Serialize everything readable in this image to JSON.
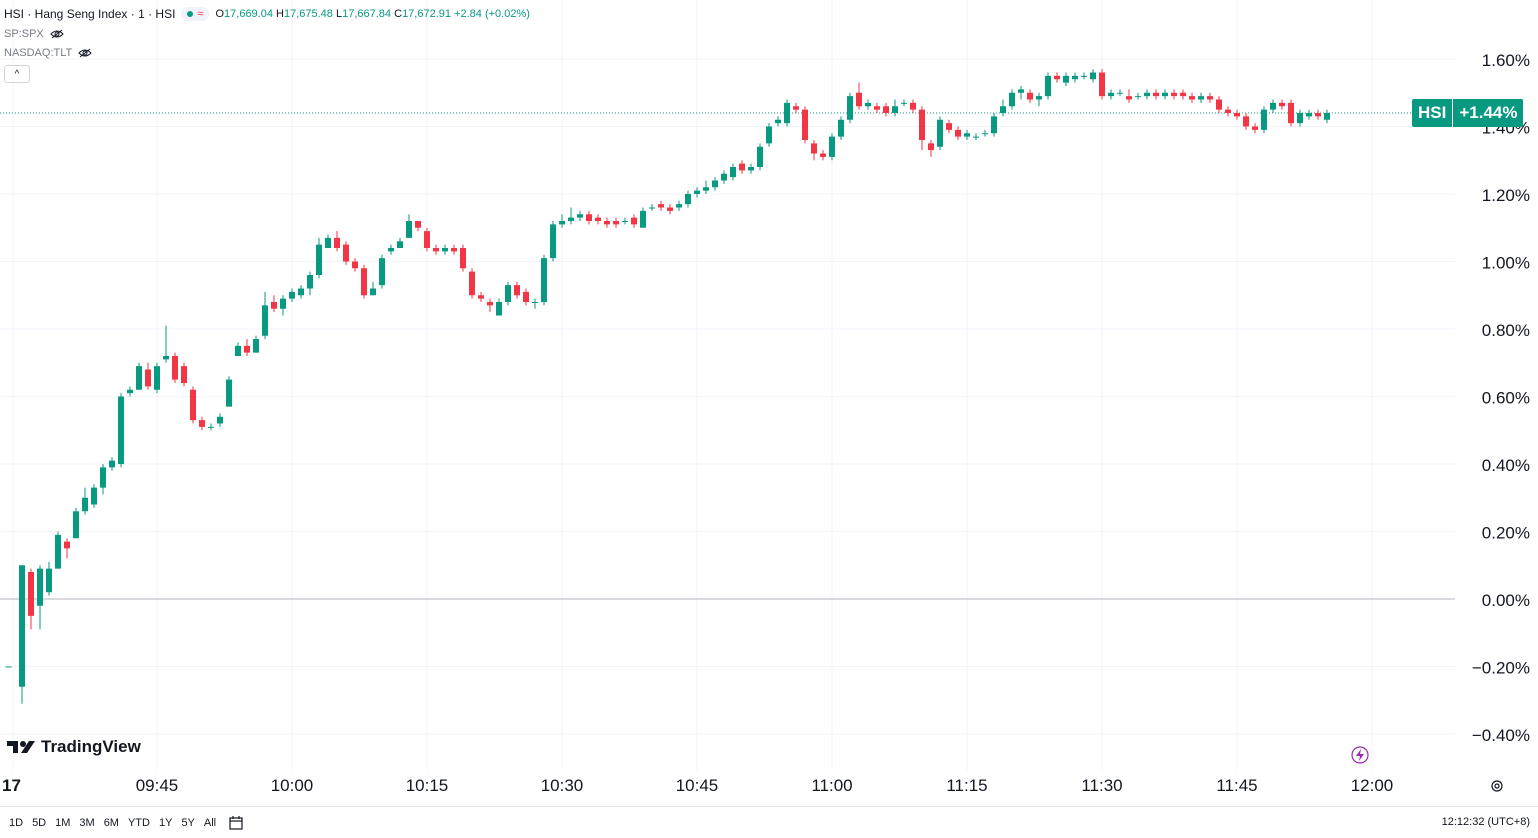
{
  "legend": {
    "title": "HSI · Hang Seng Index · 1 · HSI",
    "open_label": "O",
    "open_value": "17,669.04",
    "high_label": "H",
    "high_value": "17,675.48",
    "low_label": "L",
    "low_value": "17,667.84",
    "close_label": "C",
    "close_value": "17,672.91",
    "change": "+2.84 (+0.02%)",
    "approx_symbol": "≈",
    "compare_1": "SP:SPX",
    "compare_2": "NASDAQ:TLT",
    "collapse_glyph": "^"
  },
  "brand": {
    "name": "TradingView"
  },
  "badge": {
    "symbol": "HSI",
    "value": "+1.44%"
  },
  "bottom_bar": {
    "ranges": [
      "1D",
      "5D",
      "1M",
      "3M",
      "6M",
      "YTD",
      "1Y",
      "5Y",
      "All"
    ],
    "clock": "12:12:32 (UTC+8)"
  },
  "colors": {
    "up": "#089981",
    "down": "#f23645",
    "grid": "#f0f3fa",
    "zero_line": "#b2b5be",
    "current_line": "#089981",
    "text": "#131722"
  },
  "icons": {
    "visibility": "eye-icon",
    "calendar": "calendar-icon",
    "settings": "settings-icon",
    "alert": "lightning-icon"
  },
  "chart_data": {
    "type": "candlestick",
    "xlabel": "",
    "ylabel": "",
    "y_axis_unit": "%",
    "ylim": [
      -0.44,
      1.68
    ],
    "y_ticks": [
      1.6,
      1.4,
      1.2,
      1.0,
      0.8,
      0.6,
      0.4,
      0.2,
      0.0,
      -0.2,
      -0.4
    ],
    "y_tick_labels": [
      "1.60%",
      "1.40%",
      "1.20%",
      "1.00%",
      "0.80%",
      "0.60%",
      "0.40%",
      "0.20%",
      "0.00%",
      "−0.20%",
      "−0.40%"
    ],
    "x_ticks": [
      {
        "label": "17",
        "minute": 0
      },
      {
        "label": "09:45",
        "minute": 16
      },
      {
        "label": "10:00",
        "minute": 31
      },
      {
        "label": "10:15",
        "minute": 46
      },
      {
        "label": "10:30",
        "minute": 61
      },
      {
        "label": "10:45",
        "minute": 76
      },
      {
        "label": "11:00",
        "minute": 91
      },
      {
        "label": "11:15",
        "minute": 106
      },
      {
        "label": "11:30",
        "minute": 121
      },
      {
        "label": "11:45",
        "minute": 136
      },
      {
        "label": "12:00",
        "minute": 151
      }
    ],
    "x_minutes": [
      -0.5,
      1,
      2,
      3,
      4,
      5,
      6,
      7,
      8,
      9,
      10,
      11,
      12,
      13,
      14,
      15,
      16,
      17,
      18,
      19,
      20,
      21,
      22,
      23,
      24,
      25,
      26,
      27,
      28,
      29,
      30,
      31,
      32,
      33,
      34,
      35,
      36,
      37,
      38,
      39,
      40,
      41,
      42,
      43,
      44,
      45,
      46,
      47,
      48,
      49,
      50,
      51,
      52,
      53,
      54,
      55,
      56,
      57,
      58,
      59,
      60,
      61,
      62,
      63,
      64,
      65,
      66,
      67,
      68,
      69,
      70,
      71,
      72,
      73,
      74,
      75,
      76,
      77,
      78,
      79,
      80,
      81,
      82,
      83,
      84,
      85,
      86,
      87,
      88,
      89,
      90,
      91,
      92,
      93,
      94,
      95,
      96,
      97,
      98,
      99,
      100,
      101,
      102,
      103,
      104,
      105,
      106,
      107,
      108,
      109,
      110,
      111,
      112,
      113,
      114,
      115,
      116,
      117,
      118,
      119,
      120,
      121,
      122,
      123,
      124,
      125,
      126,
      127,
      128,
      129,
      130,
      131,
      132,
      133,
      134,
      135,
      136,
      137,
      138,
      139,
      140,
      141,
      142,
      143,
      144,
      145,
      146,
      147,
      148,
      149,
      150
    ],
    "candles": [
      [
        -0.2,
        -0.2,
        -0.2,
        -0.2
      ],
      [
        -0.26,
        0.1,
        -0.31,
        0.08
      ],
      [
        0.08,
        -0.05,
        -0.09,
        0.09
      ],
      [
        -0.02,
        0.09,
        -0.09,
        0.1
      ],
      [
        0.02,
        0.09,
        0.01,
        0.11
      ],
      [
        0.09,
        0.19,
        0.09,
        0.2
      ],
      [
        0.17,
        0.15,
        0.12,
        0.18
      ],
      [
        0.18,
        0.26,
        0.18,
        0.27
      ],
      [
        0.26,
        0.3,
        0.25,
        0.33
      ],
      [
        0.28,
        0.33,
        0.27,
        0.34
      ],
      [
        0.33,
        0.39,
        0.31,
        0.4
      ],
      [
        0.39,
        0.41,
        0.38,
        0.42
      ],
      [
        0.4,
        0.6,
        0.39,
        0.61
      ],
      [
        0.61,
        0.62,
        0.6,
        0.63
      ],
      [
        0.62,
        0.69,
        0.62,
        0.7
      ],
      [
        0.68,
        0.63,
        0.62,
        0.7
      ],
      [
        0.62,
        0.69,
        0.61,
        0.7
      ],
      [
        0.71,
        0.72,
        0.7,
        0.81
      ],
      [
        0.72,
        0.65,
        0.64,
        0.73
      ],
      [
        0.69,
        0.64,
        0.63,
        0.7
      ],
      [
        0.62,
        0.53,
        0.52,
        0.63
      ],
      [
        0.53,
        0.51,
        0.5,
        0.54
      ],
      [
        0.51,
        0.51,
        0.5,
        0.52
      ],
      [
        0.52,
        0.54,
        0.51,
        0.55
      ],
      [
        0.57,
        0.65,
        0.57,
        0.66
      ],
      [
        0.72,
        0.75,
        0.72,
        0.76
      ],
      [
        0.75,
        0.73,
        0.72,
        0.77
      ],
      [
        0.73,
        0.77,
        0.73,
        0.78
      ],
      [
        0.78,
        0.87,
        0.77,
        0.91
      ],
      [
        0.88,
        0.86,
        0.85,
        0.9
      ],
      [
        0.86,
        0.89,
        0.84,
        0.9
      ],
      [
        0.89,
        0.91,
        0.88,
        0.92
      ],
      [
        0.9,
        0.92,
        0.89,
        0.93
      ],
      [
        0.92,
        0.96,
        0.9,
        0.97
      ],
      [
        0.96,
        1.05,
        0.95,
        1.07
      ],
      [
        1.04,
        1.07,
        1.04,
        1.08
      ],
      [
        1.07,
        1.04,
        1.03,
        1.09
      ],
      [
        1.05,
        1.0,
        0.99,
        1.06
      ],
      [
        1.0,
        0.98,
        0.97,
        1.01
      ],
      [
        0.98,
        0.9,
        0.89,
        0.99
      ],
      [
        0.9,
        0.92,
        0.9,
        0.94
      ],
      [
        0.93,
        1.01,
        0.92,
        1.02
      ],
      [
        1.03,
        1.04,
        1.02,
        1.05
      ],
      [
        1.04,
        1.06,
        1.04,
        1.07
      ],
      [
        1.07,
        1.12,
        1.07,
        1.14
      ],
      [
        1.12,
        1.1,
        1.09,
        1.12
      ],
      [
        1.09,
        1.04,
        1.03,
        1.1
      ],
      [
        1.04,
        1.03,
        1.02,
        1.05
      ],
      [
        1.03,
        1.04,
        1.02,
        1.05
      ],
      [
        1.04,
        1.03,
        1.02,
        1.05
      ],
      [
        1.04,
        0.98,
        0.97,
        1.05
      ],
      [
        0.97,
        0.9,
        0.89,
        0.98
      ],
      [
        0.9,
        0.89,
        0.88,
        0.91
      ],
      [
        0.88,
        0.87,
        0.85,
        0.89
      ],
      [
        0.84,
        0.88,
        0.84,
        0.89
      ],
      [
        0.88,
        0.93,
        0.87,
        0.94
      ],
      [
        0.93,
        0.9,
        0.89,
        0.94
      ],
      [
        0.91,
        0.88,
        0.87,
        0.92
      ],
      [
        0.88,
        0.88,
        0.86,
        0.89
      ],
      [
        0.88,
        1.01,
        0.87,
        1.02
      ],
      [
        1.01,
        1.11,
        1.0,
        1.12
      ],
      [
        1.11,
        1.12,
        1.1,
        1.14
      ],
      [
        1.12,
        1.13,
        1.11,
        1.16
      ],
      [
        1.13,
        1.14,
        1.12,
        1.15
      ],
      [
        1.14,
        1.12,
        1.11,
        1.15
      ],
      [
        1.13,
        1.12,
        1.11,
        1.14
      ],
      [
        1.12,
        1.11,
        1.1,
        1.13
      ],
      [
        1.12,
        1.11,
        1.1,
        1.13
      ],
      [
        1.12,
        1.12,
        1.11,
        1.13
      ],
      [
        1.13,
        1.11,
        1.1,
        1.14
      ],
      [
        1.1,
        1.15,
        1.1,
        1.16
      ],
      [
        1.16,
        1.16,
        1.15,
        1.17
      ],
      [
        1.17,
        1.16,
        1.15,
        1.18
      ],
      [
        1.16,
        1.15,
        1.14,
        1.17
      ],
      [
        1.16,
        1.17,
        1.15,
        1.18
      ],
      [
        1.17,
        1.2,
        1.16,
        1.21
      ],
      [
        1.2,
        1.21,
        1.19,
        1.22
      ],
      [
        1.21,
        1.22,
        1.2,
        1.24
      ],
      [
        1.22,
        1.24,
        1.21,
        1.25
      ],
      [
        1.24,
        1.26,
        1.23,
        1.27
      ],
      [
        1.25,
        1.28,
        1.24,
        1.29
      ],
      [
        1.29,
        1.27,
        1.26,
        1.3
      ],
      [
        1.27,
        1.28,
        1.26,
        1.29
      ],
      [
        1.28,
        1.34,
        1.27,
        1.35
      ],
      [
        1.35,
        1.4,
        1.34,
        1.41
      ],
      [
        1.41,
        1.42,
        1.4,
        1.43
      ],
      [
        1.41,
        1.47,
        1.4,
        1.48
      ],
      [
        1.46,
        1.45,
        1.44,
        1.47
      ],
      [
        1.45,
        1.36,
        1.35,
        1.46
      ],
      [
        1.35,
        1.32,
        1.3,
        1.36
      ],
      [
        1.32,
        1.31,
        1.3,
        1.33
      ],
      [
        1.31,
        1.37,
        1.3,
        1.38
      ],
      [
        1.37,
        1.42,
        1.36,
        1.43
      ],
      [
        1.42,
        1.49,
        1.41,
        1.5
      ],
      [
        1.5,
        1.46,
        1.45,
        1.53
      ],
      [
        1.46,
        1.47,
        1.45,
        1.48
      ],
      [
        1.46,
        1.45,
        1.44,
        1.47
      ],
      [
        1.46,
        1.44,
        1.43,
        1.47
      ],
      [
        1.44,
        1.46,
        1.43,
        1.48
      ],
      [
        1.47,
        1.47,
        1.46,
        1.48
      ],
      [
        1.47,
        1.45,
        1.44,
        1.48
      ],
      [
        1.45,
        1.36,
        1.33,
        1.46
      ],
      [
        1.35,
        1.33,
        1.31,
        1.36
      ],
      [
        1.34,
        1.42,
        1.33,
        1.43
      ],
      [
        1.41,
        1.39,
        1.38,
        1.42
      ],
      [
        1.39,
        1.37,
        1.36,
        1.4
      ],
      [
        1.37,
        1.38,
        1.36,
        1.39
      ],
      [
        1.37,
        1.37,
        1.36,
        1.38
      ],
      [
        1.38,
        1.38,
        1.37,
        1.39
      ],
      [
        1.38,
        1.43,
        1.37,
        1.44
      ],
      [
        1.44,
        1.46,
        1.43,
        1.48
      ],
      [
        1.46,
        1.5,
        1.45,
        1.51
      ],
      [
        1.5,
        1.51,
        1.48,
        1.52
      ],
      [
        1.5,
        1.48,
        1.47,
        1.51
      ],
      [
        1.48,
        1.49,
        1.46,
        1.5
      ],
      [
        1.49,
        1.55,
        1.48,
        1.56
      ],
      [
        1.55,
        1.54,
        1.53,
        1.56
      ],
      [
        1.53,
        1.55,
        1.52,
        1.56
      ],
      [
        1.54,
        1.55,
        1.53,
        1.56
      ],
      [
        1.55,
        1.55,
        1.54,
        1.56
      ],
      [
        1.54,
        1.56,
        1.53,
        1.57
      ],
      [
        1.56,
        1.49,
        1.48,
        1.57
      ],
      [
        1.49,
        1.5,
        1.48,
        1.51
      ],
      [
        1.5,
        1.5,
        1.49,
        1.51
      ],
      [
        1.49,
        1.48,
        1.47,
        1.51
      ],
      [
        1.49,
        1.49,
        1.48,
        1.5
      ],
      [
        1.49,
        1.5,
        1.48,
        1.51
      ],
      [
        1.5,
        1.49,
        1.48,
        1.51
      ],
      [
        1.49,
        1.5,
        1.48,
        1.51
      ],
      [
        1.5,
        1.49,
        1.48,
        1.51
      ],
      [
        1.5,
        1.49,
        1.48,
        1.51
      ],
      [
        1.49,
        1.48,
        1.47,
        1.5
      ],
      [
        1.48,
        1.49,
        1.47,
        1.5
      ],
      [
        1.49,
        1.48,
        1.47,
        1.5
      ],
      [
        1.48,
        1.45,
        1.44,
        1.49
      ],
      [
        1.45,
        1.44,
        1.43,
        1.46
      ],
      [
        1.44,
        1.43,
        1.42,
        1.45
      ],
      [
        1.43,
        1.4,
        1.39,
        1.44
      ],
      [
        1.4,
        1.39,
        1.38,
        1.41
      ],
      [
        1.39,
        1.45,
        1.38,
        1.46
      ],
      [
        1.45,
        1.47,
        1.44,
        1.48
      ],
      [
        1.47,
        1.46,
        1.45,
        1.48
      ],
      [
        1.47,
        1.41,
        1.4,
        1.48
      ],
      [
        1.41,
        1.44,
        1.4,
        1.45
      ],
      [
        1.43,
        1.44,
        1.42,
        1.45
      ],
      [
        1.44,
        1.43,
        1.42,
        1.45
      ],
      [
        1.42,
        1.44,
        1.41,
        1.45
      ]
    ],
    "current_value": 1.44,
    "grid": true
  }
}
